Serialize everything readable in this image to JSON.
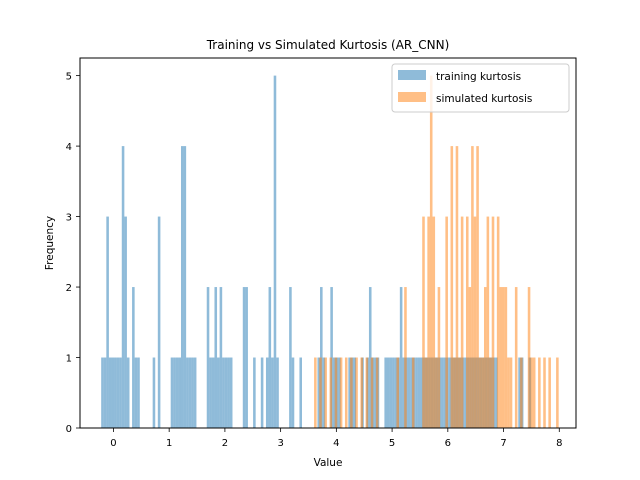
{
  "chart_data": {
    "type": "bar",
    "title": "Training vs Simulated Kurtosis (AR_CNN)",
    "xlabel": "Value",
    "ylabel": "Frequency",
    "xlim": [
      -0.6,
      8.3
    ],
    "ylim": [
      0,
      5.25
    ],
    "xticks": [
      "0",
      "1",
      "2",
      "3",
      "4",
      "5",
      "6",
      "7",
      "8"
    ],
    "xtick_values": [
      0,
      1,
      2,
      3,
      4,
      5,
      6,
      7,
      8
    ],
    "yticks": [
      "0",
      "1",
      "2",
      "3",
      "4",
      "5"
    ],
    "ytick_values": [
      0,
      1,
      2,
      3,
      4,
      5
    ],
    "grid": false,
    "legend_position": "top-right",
    "series": [
      {
        "name": "training kurtosis",
        "color": "#1f77b4",
        "alpha": 0.5,
        "bin_width": 0.0462,
        "bin_start": -0.22,
        "counts": [
          1,
          1,
          3,
          1,
          1,
          1,
          1,
          1,
          4,
          3,
          1,
          0,
          2,
          1,
          1,
          0,
          0,
          0,
          0,
          0,
          1,
          0,
          3,
          0,
          0,
          0,
          0,
          1,
          1,
          1,
          1,
          4,
          4,
          1,
          1,
          1,
          1,
          0,
          0,
          0,
          0,
          2,
          1,
          1,
          2,
          1,
          2,
          1,
          1,
          1,
          1,
          0,
          0,
          0,
          0,
          2,
          2,
          0,
          0,
          1,
          0,
          0,
          1,
          0,
          1,
          2,
          1,
          5,
          1,
          0,
          0,
          0,
          0,
          2,
          1,
          0,
          0,
          1,
          0,
          0,
          0,
          0,
          0,
          0,
          1,
          2,
          1,
          0,
          0,
          2,
          1,
          1,
          1,
          0,
          0,
          0,
          1,
          1,
          1,
          0,
          0,
          1,
          0,
          1,
          2,
          1,
          1,
          1,
          0,
          0,
          1,
          1,
          1,
          1,
          1,
          1,
          2,
          1,
          1,
          1,
          1,
          1,
          1,
          1,
          1,
          1,
          1,
          1,
          1,
          1,
          1,
          1,
          1,
          1,
          1,
          1,
          1,
          1,
          1,
          1,
          1,
          1,
          1,
          1,
          1,
          1,
          1,
          1,
          1,
          1,
          1,
          1,
          1,
          1,
          0,
          0,
          0,
          0,
          0,
          0,
          0,
          0,
          1,
          1,
          0,
          0,
          1,
          0,
          0,
          0,
          0,
          0,
          0,
          0
        ]
      },
      {
        "name": "simulated kurtosis",
        "color": "#ff7f0e",
        "alpha": 0.5,
        "bin_width": 0.0462,
        "bin_start": 3.6,
        "counts": [
          1,
          0,
          1,
          0,
          1,
          0,
          1,
          0,
          1,
          0,
          1,
          0,
          1,
          0,
          1,
          0,
          1,
          0,
          1,
          0,
          1,
          0,
          1,
          0,
          1,
          0,
          0,
          0,
          0,
          0,
          0,
          0,
          1,
          0,
          0,
          2,
          0,
          0,
          1,
          0,
          0,
          0,
          3,
          1,
          3,
          5,
          3,
          1,
          2,
          0,
          0,
          3,
          0,
          4,
          1,
          4,
          1,
          3,
          0,
          3,
          2,
          4,
          3,
          4,
          1,
          1,
          2,
          3,
          1,
          3,
          0,
          3,
          2,
          2,
          2,
          1,
          1,
          0,
          2,
          0,
          1,
          0,
          0,
          2,
          1,
          1,
          0,
          1,
          0,
          1,
          0,
          1,
          0,
          0,
          1
        ]
      }
    ]
  }
}
